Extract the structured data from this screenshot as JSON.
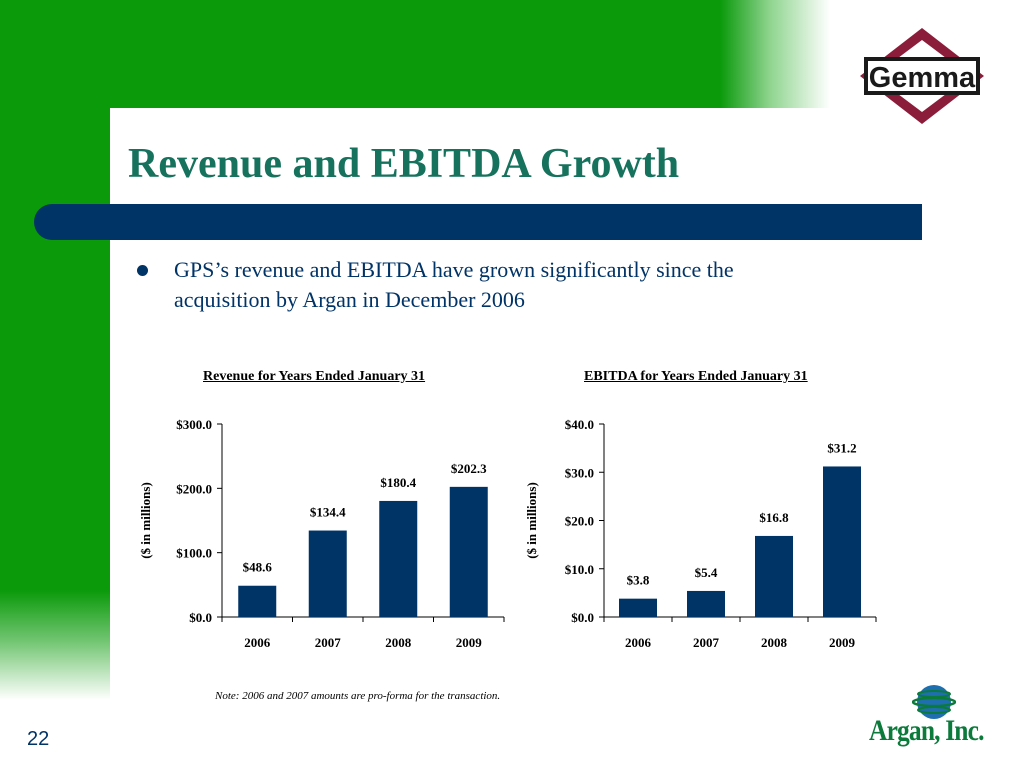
{
  "slide": {
    "title": "Revenue and EBITDA Growth",
    "bullet": "GPS’s revenue and EBITDA have grown significantly since the acquisition by Argan in December 2006",
    "note": "Note: 2006 and 2007 amounts are pro-forma for the transaction.",
    "page_number": "22",
    "logos": {
      "top_right": "Gemma",
      "bottom_right": "Argan, Inc."
    }
  },
  "colors": {
    "green": "#0a9a0a",
    "navy": "#003366",
    "title_teal": "#16725d",
    "gemma_red": "#8b1d3a"
  },
  "chart_data": [
    {
      "type": "bar",
      "title": "Revenue for Years Ended January 31",
      "ylabel": "($ in millions)",
      "xlabel": "",
      "categories": [
        "2006",
        "2007",
        "2008",
        "2009"
      ],
      "values": [
        48.6,
        134.4,
        180.4,
        202.3
      ],
      "value_labels": [
        "$48.6",
        "$134.4",
        "$180.4",
        "$202.3"
      ],
      "ylim": [
        0,
        300
      ],
      "yticks": [
        0,
        100,
        200,
        300
      ],
      "ytick_labels": [
        "$0.0",
        "$100.0",
        "$200.0",
        "$300.0"
      ],
      "bar_color": "#003366",
      "grid": false,
      "legend": "none"
    },
    {
      "type": "bar",
      "title": "EBITDA for Years Ended January 31",
      "ylabel": "($ in millions)",
      "xlabel": "",
      "categories": [
        "2006",
        "2007",
        "2008",
        "2009"
      ],
      "values": [
        3.8,
        5.4,
        16.8,
        31.2
      ],
      "value_labels": [
        "$3.8",
        "$5.4",
        "$16.8",
        "$31.2"
      ],
      "ylim": [
        0,
        40
      ],
      "yticks": [
        0,
        10,
        20,
        30,
        40
      ],
      "ytick_labels": [
        "$0.0",
        "$10.0",
        "$20.0",
        "$30.0",
        "$40.0"
      ],
      "bar_color": "#003366",
      "grid": false,
      "legend": "none"
    }
  ]
}
